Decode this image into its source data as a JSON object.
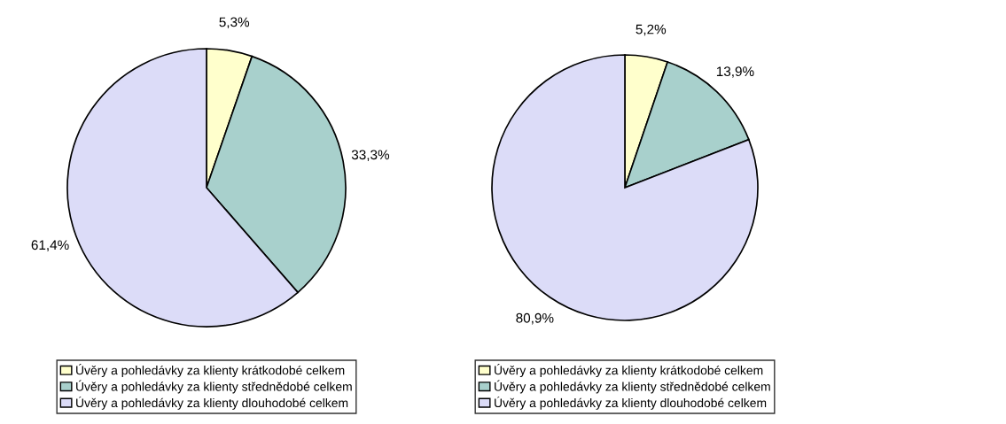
{
  "chart_data": [
    {
      "type": "pie",
      "categories": [
        "Úvěry a pohledávky za klienty krátkodobé celkem",
        "Úvěry a pohledávky za klienty střednědobé celkem",
        "Úvěry a pohledávky za klienty dlouhodobé celkem"
      ],
      "values": [
        5.3,
        33.3,
        61.4
      ],
      "value_labels": [
        "5,3%",
        "33,3%",
        "61,4%"
      ],
      "colors": [
        "#ffffcc",
        "#a8d0cc",
        "#dcdcf8"
      ],
      "legend": "bottom"
    },
    {
      "type": "pie",
      "categories": [
        "Úvěry a pohledávky za klienty krátkodobé celkem",
        "Úvěry a pohledávky za klienty střednědobé celkem",
        "Úvěry a pohledávky za klienty dlouhodobé celkem"
      ],
      "values": [
        5.2,
        13.9,
        80.9
      ],
      "value_labels": [
        "5,2%",
        "13,9%",
        "80,9%"
      ],
      "colors": [
        "#ffffcc",
        "#a8d0cc",
        "#dcdcf8"
      ],
      "legend": "bottom"
    }
  ]
}
